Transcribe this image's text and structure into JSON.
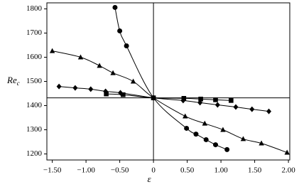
{
  "chart_data": {
    "type": "scatter",
    "xlabel": "ε",
    "ylabel": [
      "Re",
      "c"
    ],
    "xlim": [
      -1.58,
      2.02
    ],
    "ylim": [
      1175,
      1825
    ],
    "xticks": [
      {
        "value": -1.5,
        "label": "−1.50"
      },
      {
        "value": -1.0,
        "label": "−1.00"
      },
      {
        "value": -0.5,
        "label": "−0.50"
      },
      {
        "value": 0,
        "label": "0"
      },
      {
        "value": 0.5,
        "label": "0.50"
      },
      {
        "value": 1.0,
        "label": "1.00"
      },
      {
        "value": 1.5,
        "label": "1.50"
      },
      {
        "value": 2.0,
        "label": "2.00"
      }
    ],
    "yticks": [
      1200,
      1300,
      1400,
      1500,
      1600,
      1700,
      1800
    ],
    "hline": 1432,
    "vline": 0,
    "series": [
      {
        "marker": "circle",
        "color": "#000000",
        "x": [
          -0.57,
          -0.5,
          -0.4,
          0,
          0.49,
          0.63,
          0.78,
          0.92,
          1.09
        ],
        "values": [
          1806,
          1709,
          1647,
          1432,
          1306,
          1282,
          1259,
          1238,
          1218
        ]
      },
      {
        "marker": "triangle",
        "color": "#000000",
        "x": [
          -1.5,
          -1.08,
          -0.8,
          -0.6,
          -0.3,
          0,
          0.47,
          0.76,
          1.03,
          1.33,
          1.6,
          1.98
        ],
        "values": [
          1626,
          1600,
          1565,
          1535,
          1500,
          1432,
          1356,
          1326,
          1300,
          1262,
          1244,
          1206
        ]
      },
      {
        "marker": "diamond",
        "color": "#000000",
        "x": [
          -1.4,
          -1.16,
          -0.93,
          -0.71,
          -0.49,
          0,
          0.44,
          0.69,
          0.95,
          1.22,
          1.46,
          1.71
        ],
        "values": [
          1479,
          1473,
          1468,
          1459,
          1453,
          1432,
          1421,
          1412,
          1403,
          1394,
          1385,
          1376
        ]
      },
      {
        "marker": "square",
        "color": "#000000",
        "x": [
          -0.7,
          -0.45,
          0,
          0.45,
          0.7,
          0.92,
          1.15
        ],
        "values": [
          1448,
          1445,
          1432,
          1430,
          1427,
          1424,
          1421
        ]
      }
    ]
  }
}
